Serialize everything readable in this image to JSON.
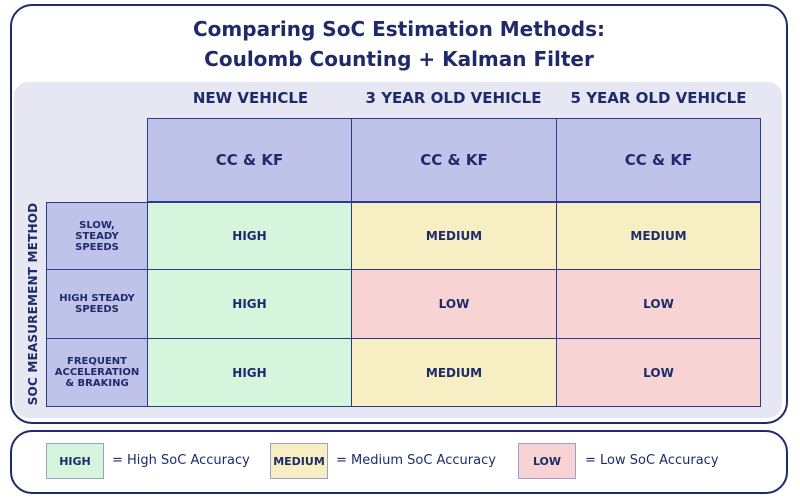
{
  "title_line1": "Comparing SoC Estimation Methods:",
  "title_line2": "Coulomb Counting + Kalman Filter",
  "columns": [
    "NEW VEHICLE",
    "3 YEAR OLD VEHICLE",
    "5 YEAR OLD VEHICLE"
  ],
  "subheader": "CC & KF",
  "row_axis_label": "SOC MEASUREMENT METHOD",
  "rows": [
    {
      "label_lines": [
        "SLOW,",
        "STEADY",
        "SPEEDS"
      ],
      "values": [
        "HIGH",
        "MEDIUM",
        "MEDIUM"
      ]
    },
    {
      "label_lines": [
        "HIGH STEADY",
        "SPEEDS"
      ],
      "values": [
        "HIGH",
        "LOW",
        "LOW"
      ]
    },
    {
      "label_lines": [
        "FREQUENT",
        "ACCELERATION",
        "& BRAKING"
      ],
      "values": [
        "HIGH",
        "MEDIUM",
        "LOW"
      ]
    }
  ],
  "legend": [
    {
      "key": "HIGH",
      "text": "= High SoC Accuracy"
    },
    {
      "key": "MEDIUM",
      "text": "= Medium SoC Accuracy"
    },
    {
      "key": "LOW",
      "text": "= Low SoC Accuracy"
    }
  ],
  "colors": {
    "high": "#d6f5dd",
    "medium": "#f7efc3",
    "low": "#f8d3d4",
    "header": "#c0c3e9",
    "navy": "#1f2a6b"
  }
}
